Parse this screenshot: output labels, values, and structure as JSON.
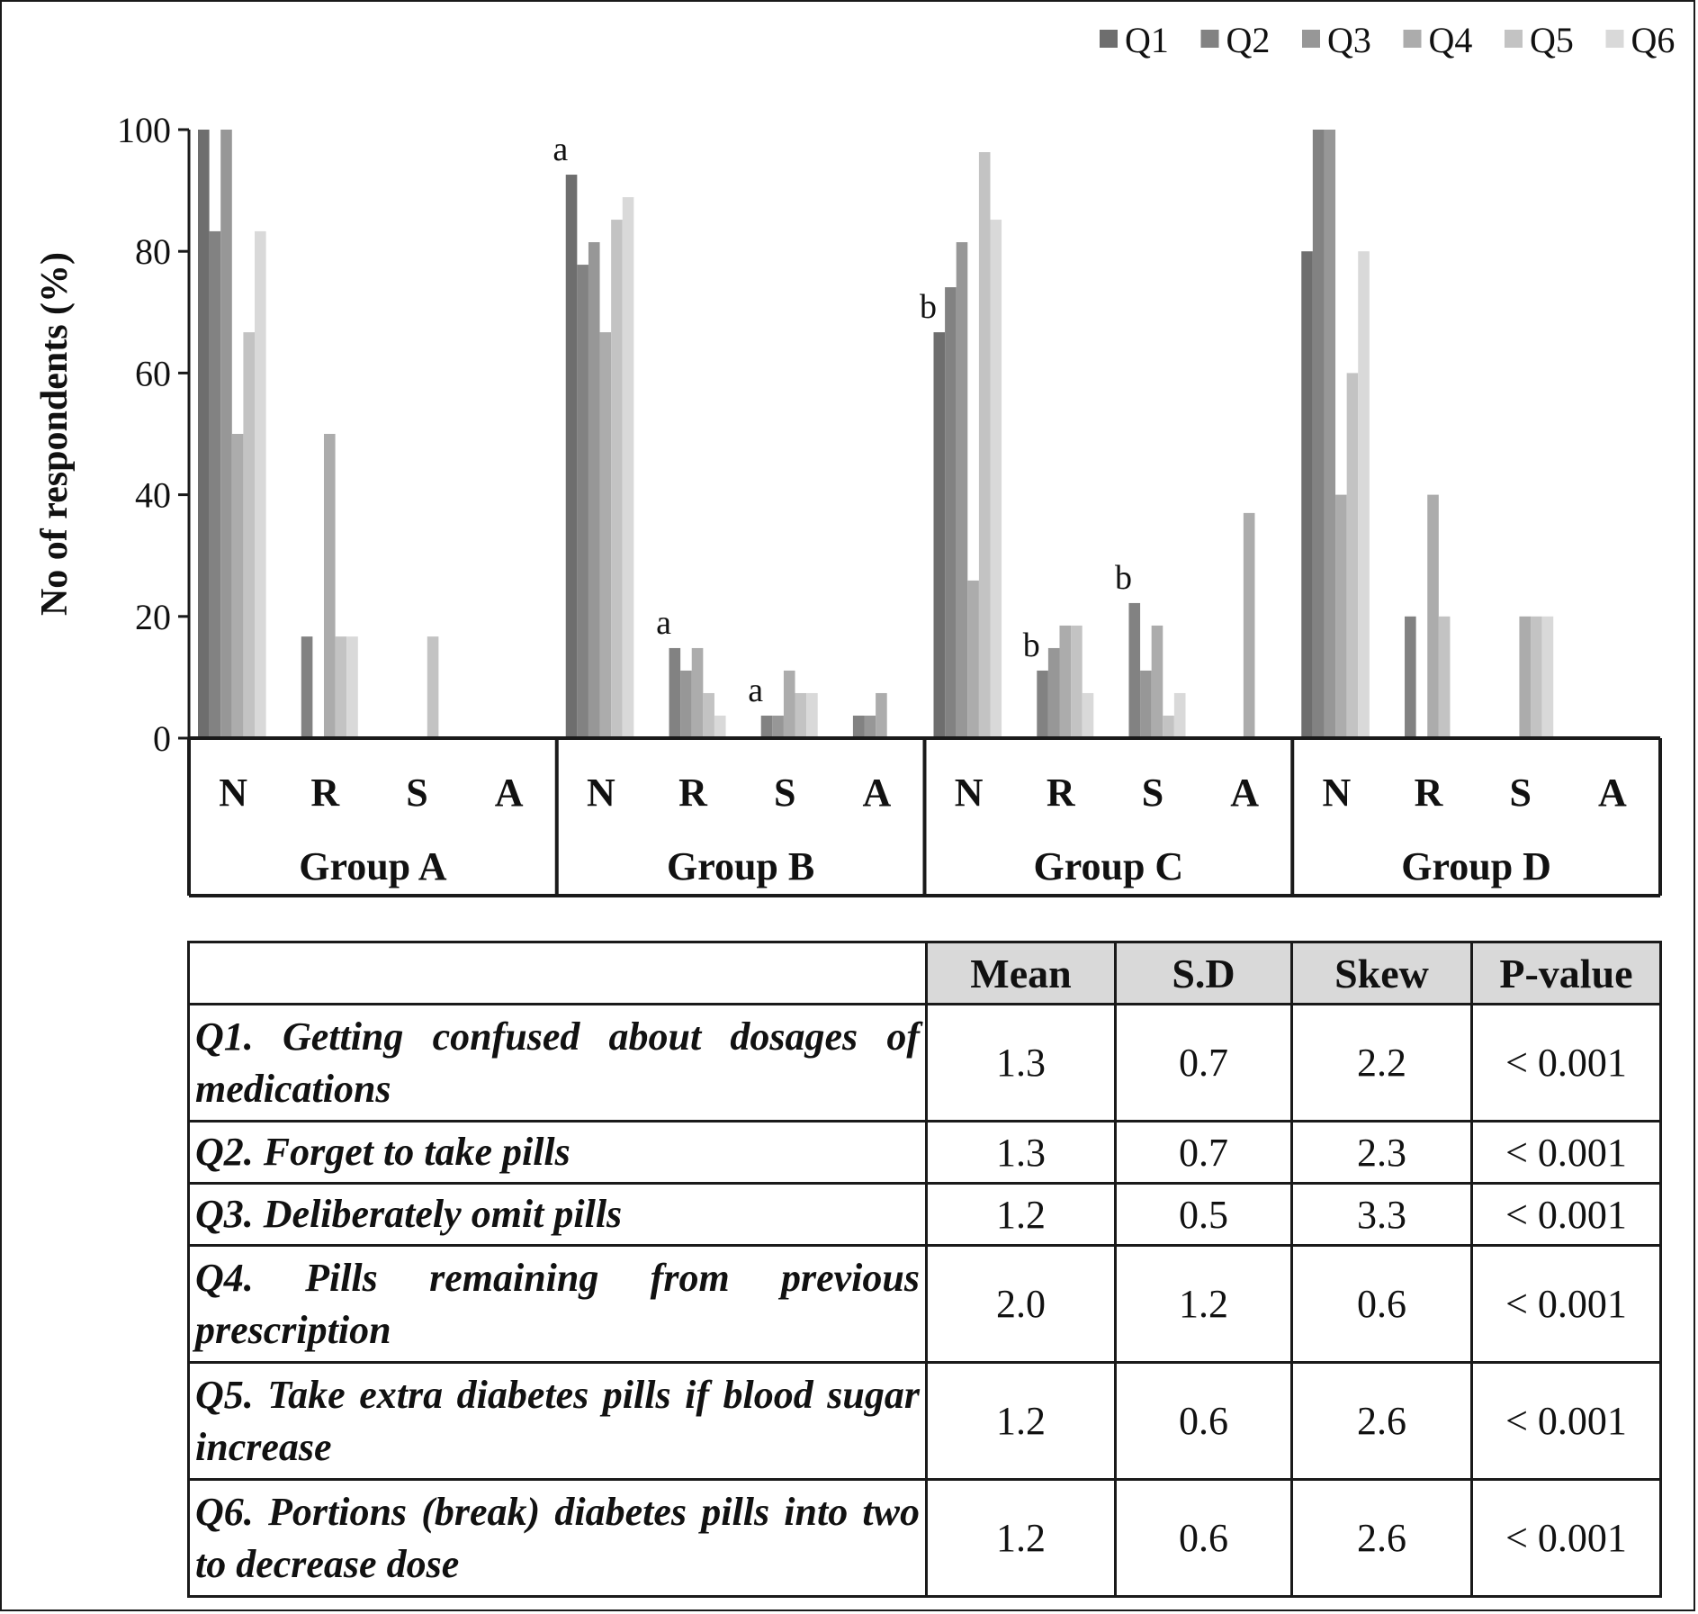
{
  "chart_data": {
    "type": "bar",
    "ylabel": "No of respondents (%)",
    "ylim": [
      0,
      100
    ],
    "yticks": [
      0,
      20,
      40,
      60,
      80,
      100
    ],
    "grid": false,
    "legend_position": "top-right",
    "series_names": [
      "Q1",
      "Q2",
      "Q3",
      "Q4",
      "Q5",
      "Q6"
    ],
    "series_colors": [
      "#6e6e6e",
      "#828282",
      "#979797",
      "#acacac",
      "#c3c3c3",
      "#d9d9d9"
    ],
    "groups": [
      {
        "name": "Group A",
        "categories": [
          "N",
          "R",
          "S",
          "A"
        ],
        "values": [
          [
            100,
            83.3,
            100,
            50,
            66.7,
            83.3
          ],
          [
            0,
            16.7,
            0,
            50,
            16.7,
            16.7
          ],
          [
            0,
            0,
            0,
            0,
            16.7,
            0
          ],
          [
            0,
            0,
            0,
            0,
            0,
            0
          ]
        ],
        "annotations": []
      },
      {
        "name": "Group B",
        "categories": [
          "N",
          "R",
          "S",
          "A"
        ],
        "values": [
          [
            92.6,
            77.8,
            81.5,
            66.7,
            85.2,
            88.9
          ],
          [
            0,
            14.8,
            11.1,
            14.8,
            7.4,
            3.7
          ],
          [
            0,
            3.7,
            3.7,
            11.1,
            7.4,
            7.4
          ],
          [
            0,
            3.7,
            3.7,
            7.4,
            0,
            0
          ]
        ],
        "annotations": [
          {
            "category": 0,
            "series": 0,
            "text": "a"
          },
          {
            "category": 1,
            "series": 1,
            "text": "a"
          },
          {
            "category": 2,
            "series": 1,
            "text": "a"
          }
        ]
      },
      {
        "name": "Group C",
        "categories": [
          "N",
          "R",
          "S",
          "A"
        ],
        "values": [
          [
            66.7,
            74.1,
            81.5,
            25.9,
            96.3,
            85.2
          ],
          [
            0,
            11.1,
            14.8,
            18.5,
            18.5,
            7.4
          ],
          [
            0,
            22.2,
            11.1,
            18.5,
            3.7,
            7.4
          ],
          [
            0,
            0,
            0,
            37,
            0,
            0
          ]
        ],
        "annotations": [
          {
            "category": 0,
            "series": 0,
            "text": "b"
          },
          {
            "category": 1,
            "series": 1,
            "text": "b"
          },
          {
            "category": 2,
            "series": 1,
            "text": "b"
          }
        ]
      },
      {
        "name": "Group D",
        "categories": [
          "N",
          "R",
          "S",
          "A"
        ],
        "values": [
          [
            80,
            100,
            100,
            40,
            60,
            80
          ],
          [
            0,
            20,
            0,
            40,
            20,
            0
          ],
          [
            0,
            0,
            0,
            20,
            20,
            20
          ],
          [
            0,
            0,
            0,
            0,
            0,
            0
          ]
        ],
        "annotations": []
      }
    ]
  },
  "table": {
    "headers": [
      "",
      "Mean",
      "S.D",
      "Skew",
      "P-value"
    ],
    "rows": [
      {
        "question": "Q1. Getting confused about dosages of medications",
        "mean": "1.3",
        "sd": "0.7",
        "skew": "2.2",
        "p": "< 0.001"
      },
      {
        "question": "Q2. Forget to take pills",
        "mean": "1.3",
        "sd": "0.7",
        "skew": "2.3",
        "p": "< 0.001"
      },
      {
        "question": "Q3. Deliberately omit pills",
        "mean": "1.2",
        "sd": "0.5",
        "skew": "3.3",
        "p": "< 0.001"
      },
      {
        "question": "Q4. Pills remaining from previous prescription",
        "mean": "2.0",
        "sd": "1.2",
        "skew": "0.6",
        "p": "< 0.001"
      },
      {
        "question": "Q5. Take extra diabetes pills if blood sugar increase",
        "mean": "1.2",
        "sd": "0.6",
        "skew": "2.6",
        "p": "< 0.001"
      },
      {
        "question": "Q6. Portions (break) diabetes pills into two to decrease dose",
        "mean": "1.2",
        "sd": "0.6",
        "skew": "2.6",
        "p": "< 0.001"
      }
    ]
  }
}
